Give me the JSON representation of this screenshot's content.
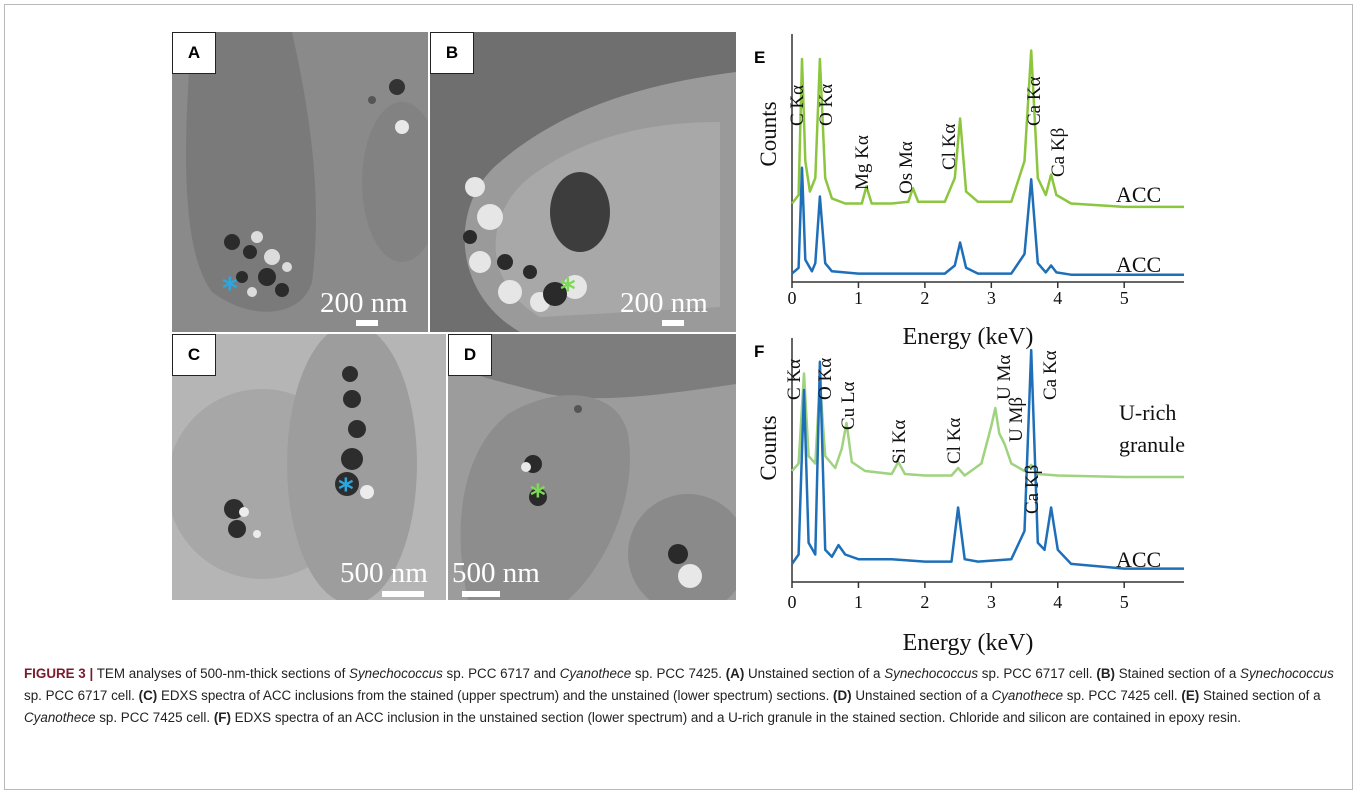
{
  "panels": {
    "A": {
      "label": "A",
      "scale": "200 nm"
    },
    "B": {
      "label": "B",
      "scale": "200 nm"
    },
    "C": {
      "label": "C",
      "scale": "500 nm"
    },
    "D": {
      "label": "D",
      "scale": "500 nm"
    },
    "E": {
      "label": "E"
    },
    "F": {
      "label": "F"
    }
  },
  "star_colors": {
    "blue": "#2aa7e0",
    "green": "#7ed957"
  },
  "chart_data": [
    {
      "type": "line",
      "panel": "E",
      "xlabel": "Energy (keV)",
      "ylabel": "Counts",
      "xlim": [
        0,
        5.9
      ],
      "xticks": [
        0,
        1,
        2,
        3,
        4,
        5
      ],
      "peak_labels": [
        "C Kα",
        "O Kα",
        "Mg Kα",
        "Os Mα",
        "Cl Kα",
        "Ca Kα",
        "Ca Kβ"
      ],
      "series": [
        {
          "name": "ACC",
          "color": "#8cc63f",
          "x": [
            0.0,
            0.1,
            0.15,
            0.2,
            0.27,
            0.35,
            0.42,
            0.5,
            0.6,
            0.8,
            1.05,
            1.12,
            1.2,
            1.5,
            1.75,
            1.82,
            1.9,
            2.3,
            2.45,
            2.53,
            2.62,
            2.8,
            3.3,
            3.5,
            3.6,
            3.7,
            3.82,
            3.9,
            3.98,
            4.2,
            5.0,
            5.9
          ],
          "y": [
            0.05,
            0.1,
            0.9,
            0.3,
            0.12,
            0.2,
            0.9,
            0.2,
            0.08,
            0.05,
            0.05,
            0.15,
            0.05,
            0.05,
            0.06,
            0.14,
            0.06,
            0.06,
            0.2,
            0.55,
            0.12,
            0.06,
            0.06,
            0.3,
            0.95,
            0.2,
            0.1,
            0.22,
            0.1,
            0.05,
            0.03,
            0.03
          ]
        },
        {
          "name": "ACC",
          "color": "#1f6fb8",
          "x": [
            0.0,
            0.1,
            0.15,
            0.2,
            0.3,
            0.35,
            0.42,
            0.5,
            0.6,
            1.0,
            2.3,
            2.45,
            2.53,
            2.62,
            2.8,
            3.3,
            3.5,
            3.6,
            3.7,
            3.82,
            3.9,
            3.98,
            4.2,
            5.0,
            5.9
          ],
          "y": [
            0.03,
            0.08,
            0.95,
            0.15,
            0.05,
            0.12,
            0.7,
            0.12,
            0.05,
            0.03,
            0.03,
            0.1,
            0.3,
            0.08,
            0.03,
            0.03,
            0.2,
            0.85,
            0.12,
            0.04,
            0.1,
            0.04,
            0.02,
            0.02,
            0.02
          ]
        }
      ]
    },
    {
      "type": "line",
      "panel": "F",
      "xlabel": "Energy (keV)",
      "ylabel": "Counts",
      "xlim": [
        0,
        5.9
      ],
      "xticks": [
        0,
        1,
        2,
        3,
        4,
        5
      ],
      "peak_labels": [
        "C Kα",
        "O Kα",
        "Cu Lα",
        "Si Kα",
        "Cl Kα",
        "U Mα",
        "U Mβ",
        "Ca Kα",
        "Ca Kβ"
      ],
      "series": [
        {
          "name": "U-rich granule",
          "color": "#9fd37f",
          "x": [
            0.0,
            0.1,
            0.18,
            0.25,
            0.35,
            0.42,
            0.5,
            0.65,
            0.75,
            0.82,
            0.9,
            1.1,
            1.5,
            1.6,
            1.7,
            2.0,
            2.4,
            2.5,
            2.6,
            2.85,
            3.0,
            3.06,
            3.12,
            3.2,
            3.3,
            3.5,
            3.6,
            3.7,
            4.0,
            5.0,
            5.9
          ],
          "y": [
            0.3,
            0.35,
            0.95,
            0.4,
            0.35,
            0.9,
            0.4,
            0.32,
            0.45,
            0.62,
            0.36,
            0.3,
            0.28,
            0.36,
            0.28,
            0.27,
            0.27,
            0.32,
            0.27,
            0.35,
            0.6,
            0.72,
            0.55,
            0.48,
            0.35,
            0.3,
            0.34,
            0.28,
            0.27,
            0.26,
            0.26
          ]
        },
        {
          "name": "ACC",
          "color": "#1f6fb8",
          "x": [
            0.0,
            0.1,
            0.18,
            0.25,
            0.35,
            0.42,
            0.5,
            0.6,
            0.7,
            0.8,
            1.0,
            1.5,
            2.0,
            2.4,
            2.5,
            2.6,
            2.8,
            3.3,
            3.5,
            3.6,
            3.7,
            3.8,
            3.9,
            4.0,
            4.2,
            5.0,
            5.9
          ],
          "y": [
            0.06,
            0.1,
            0.8,
            0.15,
            0.1,
            0.92,
            0.12,
            0.09,
            0.14,
            0.1,
            0.08,
            0.08,
            0.07,
            0.07,
            0.3,
            0.08,
            0.07,
            0.08,
            0.2,
            0.97,
            0.15,
            0.12,
            0.3,
            0.12,
            0.06,
            0.04,
            0.04
          ]
        }
      ]
    }
  ],
  "chart_labels": {
    "E_series_top": "ACC",
    "E_series_bottom": "ACC",
    "F_series_top_line1": "U-rich",
    "F_series_top_line2": "granule",
    "F_series_bottom": "ACC"
  },
  "caption": {
    "fig": "FIGURE 3 |",
    "t1": " TEM analyses of 500-nm-thick sections of ",
    "i1": "Synechococcus",
    "t2": " sp. PCC 6717 and ",
    "i2": "Cyanothece",
    "t3": " sp. PCC 7425. ",
    "bA": "(A)",
    "t4": " Unstained section of a ",
    "i3": "Synechococcus",
    "t5": " sp. PCC 6717 cell. ",
    "bB": "(B)",
    "t6": " Stained section of a ",
    "i4": "Synechococcus",
    "t7": " sp. PCC 6717 cell. ",
    "bC": "(C)",
    "t8": " EDXS spectra of ACC inclusions from the stained (upper spectrum) and the unstained (lower spectrum) sections. ",
    "bD": "(D)",
    "t9": " Unstained section of a ",
    "i5": "Cyanothece",
    "t10": " sp. PCC 7425 cell. ",
    "bE": "(E)",
    "t11": " Stained section of a ",
    "i6": "Cyanothece",
    "t12": " sp. PCC 7425 cell. ",
    "bF": "(F)",
    "t13": " EDXS spectra of an ACC inclusion in the unstained section (lower spectrum) and a U-rich granule in the stained section. Chloride and silicon are contained in epoxy resin."
  }
}
